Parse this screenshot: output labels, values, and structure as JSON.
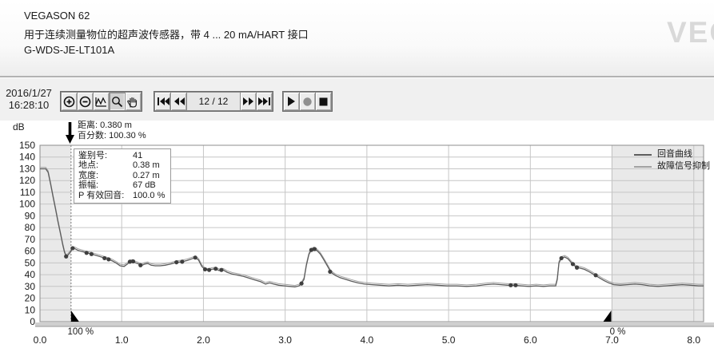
{
  "header": {
    "device": "VEGASON 62",
    "description": "用于连续测量物位的超声波传感器，带 4 ... 20 mA/HART 接口",
    "tag": "G-WDS-JE-LT101A",
    "logo": "VEGA"
  },
  "toolbar": {
    "date": "2016/1/27",
    "time": "16:28:10",
    "counter": "12 / 12",
    "zoom_icons": [
      "zoom-in",
      "zoom-out",
      "auto-range-curve",
      "zoom-area-magnifier",
      "pan-hand"
    ],
    "nav_icons": [
      "first-record",
      "previous-record",
      "next-record",
      "last-record"
    ],
    "playback_icons": [
      "play",
      "record",
      "stop"
    ],
    "record_color": "#8f8f8f"
  },
  "chart": {
    "unit_label": "dB",
    "cursor_note_line1": "距离: 0.380 m",
    "cursor_note_line2": "百分数: 100.30 %",
    "tooltip": {
      "rows": [
        [
          "鉴别号:",
          "41"
        ],
        [
          "地点:",
          "0.38 m"
        ],
        [
          "宽度:",
          "0.27 m"
        ],
        [
          "振幅:",
          "67 dB"
        ],
        [
          "P 有效回音:",
          "100.0 %"
        ]
      ]
    }
  },
  "chart_data": {
    "type": "line",
    "title": "",
    "xlabel": "",
    "ylabel": "dB",
    "xlim": [
      0,
      8.12
    ],
    "ylim": [
      0,
      150
    ],
    "grid": true,
    "legend_position": "top-right",
    "x_tick_values": [
      0,
      1,
      2,
      3,
      4,
      5,
      6,
      7,
      8
    ],
    "x_tick_labels": [
      "0.0",
      "1.0",
      "2.0",
      "3.0",
      "4.0",
      "5.0",
      "6.0",
      "7.0",
      "8.0"
    ],
    "y_tick_step": 10,
    "y_tick_labels": [
      "0",
      "10",
      "20",
      "30",
      "40",
      "50",
      "60",
      "70",
      "80",
      "90",
      "100",
      "110",
      "120",
      "130",
      "140",
      "150"
    ],
    "shaded_regions": [
      [
        0,
        0.38
      ],
      [
        6.99,
        8.12
      ]
    ],
    "cursor_x": 0.38,
    "range_markers": {
      "full": {
        "x": 0.38,
        "label": "100 %"
      },
      "empty": {
        "x": 6.99,
        "label": "0 %"
      }
    },
    "series": [
      {
        "name": "回音曲线",
        "color": "#5c5c5c",
        "points": [
          [
            0,
            130
          ],
          [
            0.07,
            130
          ],
          [
            0.1,
            127
          ],
          [
            0.13,
            117
          ],
          [
            0.16,
            106
          ],
          [
            0.19,
            96
          ],
          [
            0.22,
            85
          ],
          [
            0.25,
            75
          ],
          [
            0.28,
            65
          ],
          [
            0.3,
            59
          ],
          [
            0.32,
            55.5
          ],
          [
            0.34,
            56.5
          ],
          [
            0.37,
            59
          ],
          [
            0.4,
            62.5
          ],
          [
            0.43,
            62
          ],
          [
            0.47,
            60.5
          ],
          [
            0.52,
            59.5
          ],
          [
            0.57,
            58.5
          ],
          [
            0.63,
            57.5
          ],
          [
            0.68,
            56.5
          ],
          [
            0.73,
            55.5
          ],
          [
            0.79,
            54
          ],
          [
            0.84,
            53
          ],
          [
            0.89,
            51.5
          ],
          [
            0.94,
            49.5
          ],
          [
            0.98,
            47.5
          ],
          [
            1.03,
            47
          ],
          [
            1.07,
            49
          ],
          [
            1.1,
            51
          ],
          [
            1.13,
            51.5
          ],
          [
            1.17,
            50
          ],
          [
            1.21,
            49
          ],
          [
            1.24,
            47.5
          ],
          [
            1.28,
            49
          ],
          [
            1.32,
            49.5
          ],
          [
            1.36,
            48
          ],
          [
            1.41,
            47.5
          ],
          [
            1.47,
            47.5
          ],
          [
            1.53,
            48
          ],
          [
            1.6,
            49
          ],
          [
            1.67,
            50.5
          ],
          [
            1.74,
            51
          ],
          [
            1.8,
            52
          ],
          [
            1.86,
            53.5
          ],
          [
            1.9,
            54.5
          ],
          [
            1.94,
            52.5
          ],
          [
            1.98,
            47
          ],
          [
            2.02,
            44.5
          ],
          [
            2.06,
            43.5
          ],
          [
            2.1,
            44.5
          ],
          [
            2.15,
            45
          ],
          [
            2.19,
            43.5
          ],
          [
            2.24,
            44
          ],
          [
            2.29,
            42
          ],
          [
            2.35,
            40.5
          ],
          [
            2.42,
            39.5
          ],
          [
            2.49,
            38.5
          ],
          [
            2.56,
            37
          ],
          [
            2.63,
            35.5
          ],
          [
            2.7,
            34
          ],
          [
            2.76,
            32
          ],
          [
            2.81,
            33
          ],
          [
            2.86,
            32
          ],
          [
            2.92,
            31
          ],
          [
            2.99,
            30.5
          ],
          [
            3.06,
            30
          ],
          [
            3.12,
            29.5
          ],
          [
            3.17,
            30.5
          ],
          [
            3.2,
            32.5
          ],
          [
            3.23,
            36
          ],
          [
            3.26,
            48
          ],
          [
            3.29,
            57
          ],
          [
            3.32,
            61
          ],
          [
            3.35,
            62
          ],
          [
            3.39,
            60.5
          ],
          [
            3.43,
            57.5
          ],
          [
            3.47,
            53
          ],
          [
            3.52,
            47
          ],
          [
            3.56,
            42
          ],
          [
            3.61,
            39.5
          ],
          [
            3.67,
            37.5
          ],
          [
            3.74,
            36
          ],
          [
            3.81,
            34.5
          ],
          [
            3.89,
            33
          ],
          [
            3.97,
            32
          ],
          [
            4.06,
            31.5
          ],
          [
            4.16,
            31
          ],
          [
            4.27,
            30.5
          ],
          [
            4.38,
            31
          ],
          [
            4.5,
            30.5
          ],
          [
            4.62,
            31
          ],
          [
            4.74,
            31.5
          ],
          [
            4.86,
            31
          ],
          [
            4.98,
            30.5
          ],
          [
            5.1,
            30.5
          ],
          [
            5.22,
            30
          ],
          [
            5.34,
            30.5
          ],
          [
            5.45,
            31.5
          ],
          [
            5.55,
            32
          ],
          [
            5.64,
            31.5
          ],
          [
            5.72,
            31
          ],
          [
            5.8,
            31
          ],
          [
            5.89,
            30.5
          ],
          [
            5.98,
            30
          ],
          [
            6.07,
            30.5
          ],
          [
            6.16,
            30
          ],
          [
            6.24,
            30.5
          ],
          [
            6.31,
            30.5
          ],
          [
            6.33,
            36
          ],
          [
            6.35,
            50
          ],
          [
            6.38,
            54
          ],
          [
            6.42,
            55
          ],
          [
            6.46,
            53.5
          ],
          [
            6.51,
            49.5
          ],
          [
            6.56,
            46.5
          ],
          [
            6.61,
            45.5
          ],
          [
            6.66,
            44.5
          ],
          [
            6.72,
            42.5
          ],
          [
            6.78,
            40
          ],
          [
            6.84,
            37.5
          ],
          [
            6.9,
            35
          ],
          [
            6.96,
            33
          ],
          [
            7.02,
            31.5
          ],
          [
            7.1,
            31
          ],
          [
            7.19,
            31.5
          ],
          [
            7.28,
            32
          ],
          [
            7.37,
            31.5
          ],
          [
            7.46,
            30.5
          ],
          [
            7.56,
            30
          ],
          [
            7.66,
            30.5
          ],
          [
            7.76,
            31
          ],
          [
            7.86,
            31.5
          ],
          [
            7.96,
            31
          ],
          [
            8.06,
            30.5
          ],
          [
            8.12,
            30.5
          ]
        ]
      },
      {
        "name": "故障信号抑制",
        "color": "#a2a2a2",
        "derive": {
          "from": 0,
          "offset_db": 1.3
        }
      }
    ],
    "echo_markers": [
      [
        0.32,
        55.5
      ],
      [
        0.4,
        62.5
      ],
      [
        0.57,
        58.5
      ],
      [
        0.63,
        57.5
      ],
      [
        0.79,
        54
      ],
      [
        0.84,
        53
      ],
      [
        1.1,
        51
      ],
      [
        1.14,
        51.3
      ],
      [
        1.23,
        48
      ],
      [
        1.67,
        50.5
      ],
      [
        1.74,
        51
      ],
      [
        1.9,
        54.5
      ],
      [
        2.02,
        44.5
      ],
      [
        2.07,
        44
      ],
      [
        2.15,
        45
      ],
      [
        2.22,
        44
      ],
      [
        3.2,
        32.5
      ],
      [
        3.32,
        61
      ],
      [
        3.36,
        61.8
      ],
      [
        3.55,
        42.5
      ],
      [
        5.76,
        31
      ],
      [
        5.82,
        31
      ],
      [
        6.38,
        54
      ],
      [
        6.52,
        49
      ],
      [
        6.57,
        46
      ],
      [
        6.8,
        39.5
      ]
    ],
    "marker_color": "#3f3f3f"
  }
}
